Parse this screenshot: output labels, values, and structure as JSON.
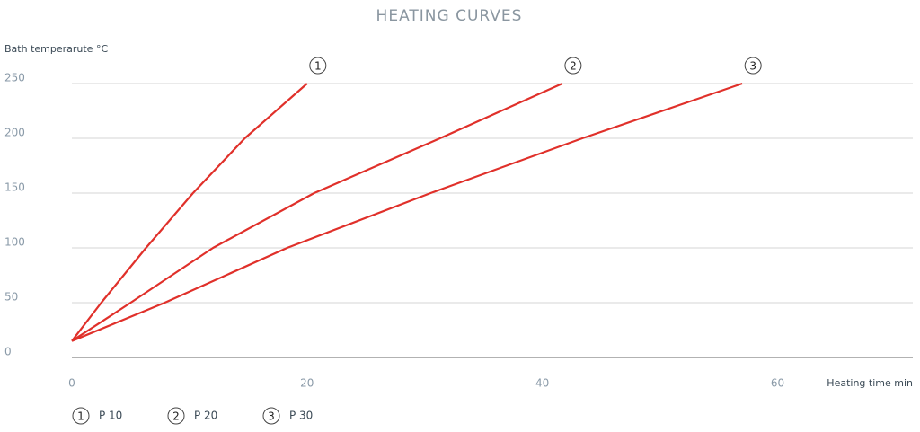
{
  "chart_data": {
    "type": "line",
    "title": "HEATING CURVES",
    "y_label": "Bath temperarute °C",
    "x_label": "Heating time min",
    "xlim": [
      0,
      71.5
    ],
    "xticks": [
      0,
      20,
      40,
      60
    ],
    "ylim": [
      0,
      250
    ],
    "yticks": [
      0,
      50,
      100,
      150,
      200,
      250
    ],
    "grid": true,
    "series": [
      {
        "name": "P 10",
        "label": "1",
        "color": "#e0302a",
        "x": [
          0,
          2.5,
          6.3,
          10.3,
          14.7,
          20
        ],
        "values": [
          15,
          50,
          100,
          150,
          200,
          250
        ]
      },
      {
        "name": "P 20",
        "label": "2",
        "color": "#e0302a",
        "x": [
          0,
          5,
          12,
          20.6,
          31.3,
          41.7
        ],
        "values": [
          15,
          50,
          100,
          150,
          200,
          250
        ]
      },
      {
        "name": "P 30",
        "label": "3",
        "color": "#e0302a",
        "x": [
          0,
          7.9,
          18.3,
          30.5,
          43.4,
          57
        ],
        "values": [
          15,
          50,
          100,
          150,
          200,
          250
        ]
      }
    ]
  }
}
